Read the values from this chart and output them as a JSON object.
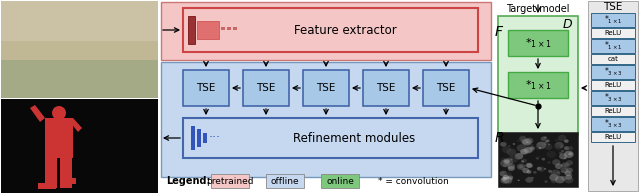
{
  "bg_color": "#ffffff",
  "pink_color": "#f5c6c6",
  "blue_color": "#c5d8f0",
  "green_light": "#d8f0d8",
  "tse_box_color": "#a8c8e8",
  "green_box_color": "#7ec87e",
  "red_dark": "#cc3333",
  "red_mid": "#e88888",
  "blue_bar": "#3355bb",
  "arrow_color": "#111111",
  "legend_items": [
    "pretrained",
    "offline",
    "online",
    "* = convolution"
  ],
  "legend_colors": [
    "#f5c6c6",
    "#c5d8f0",
    "#7ec87e",
    "none"
  ],
  "tse_col_bg": "#e8e8e8"
}
